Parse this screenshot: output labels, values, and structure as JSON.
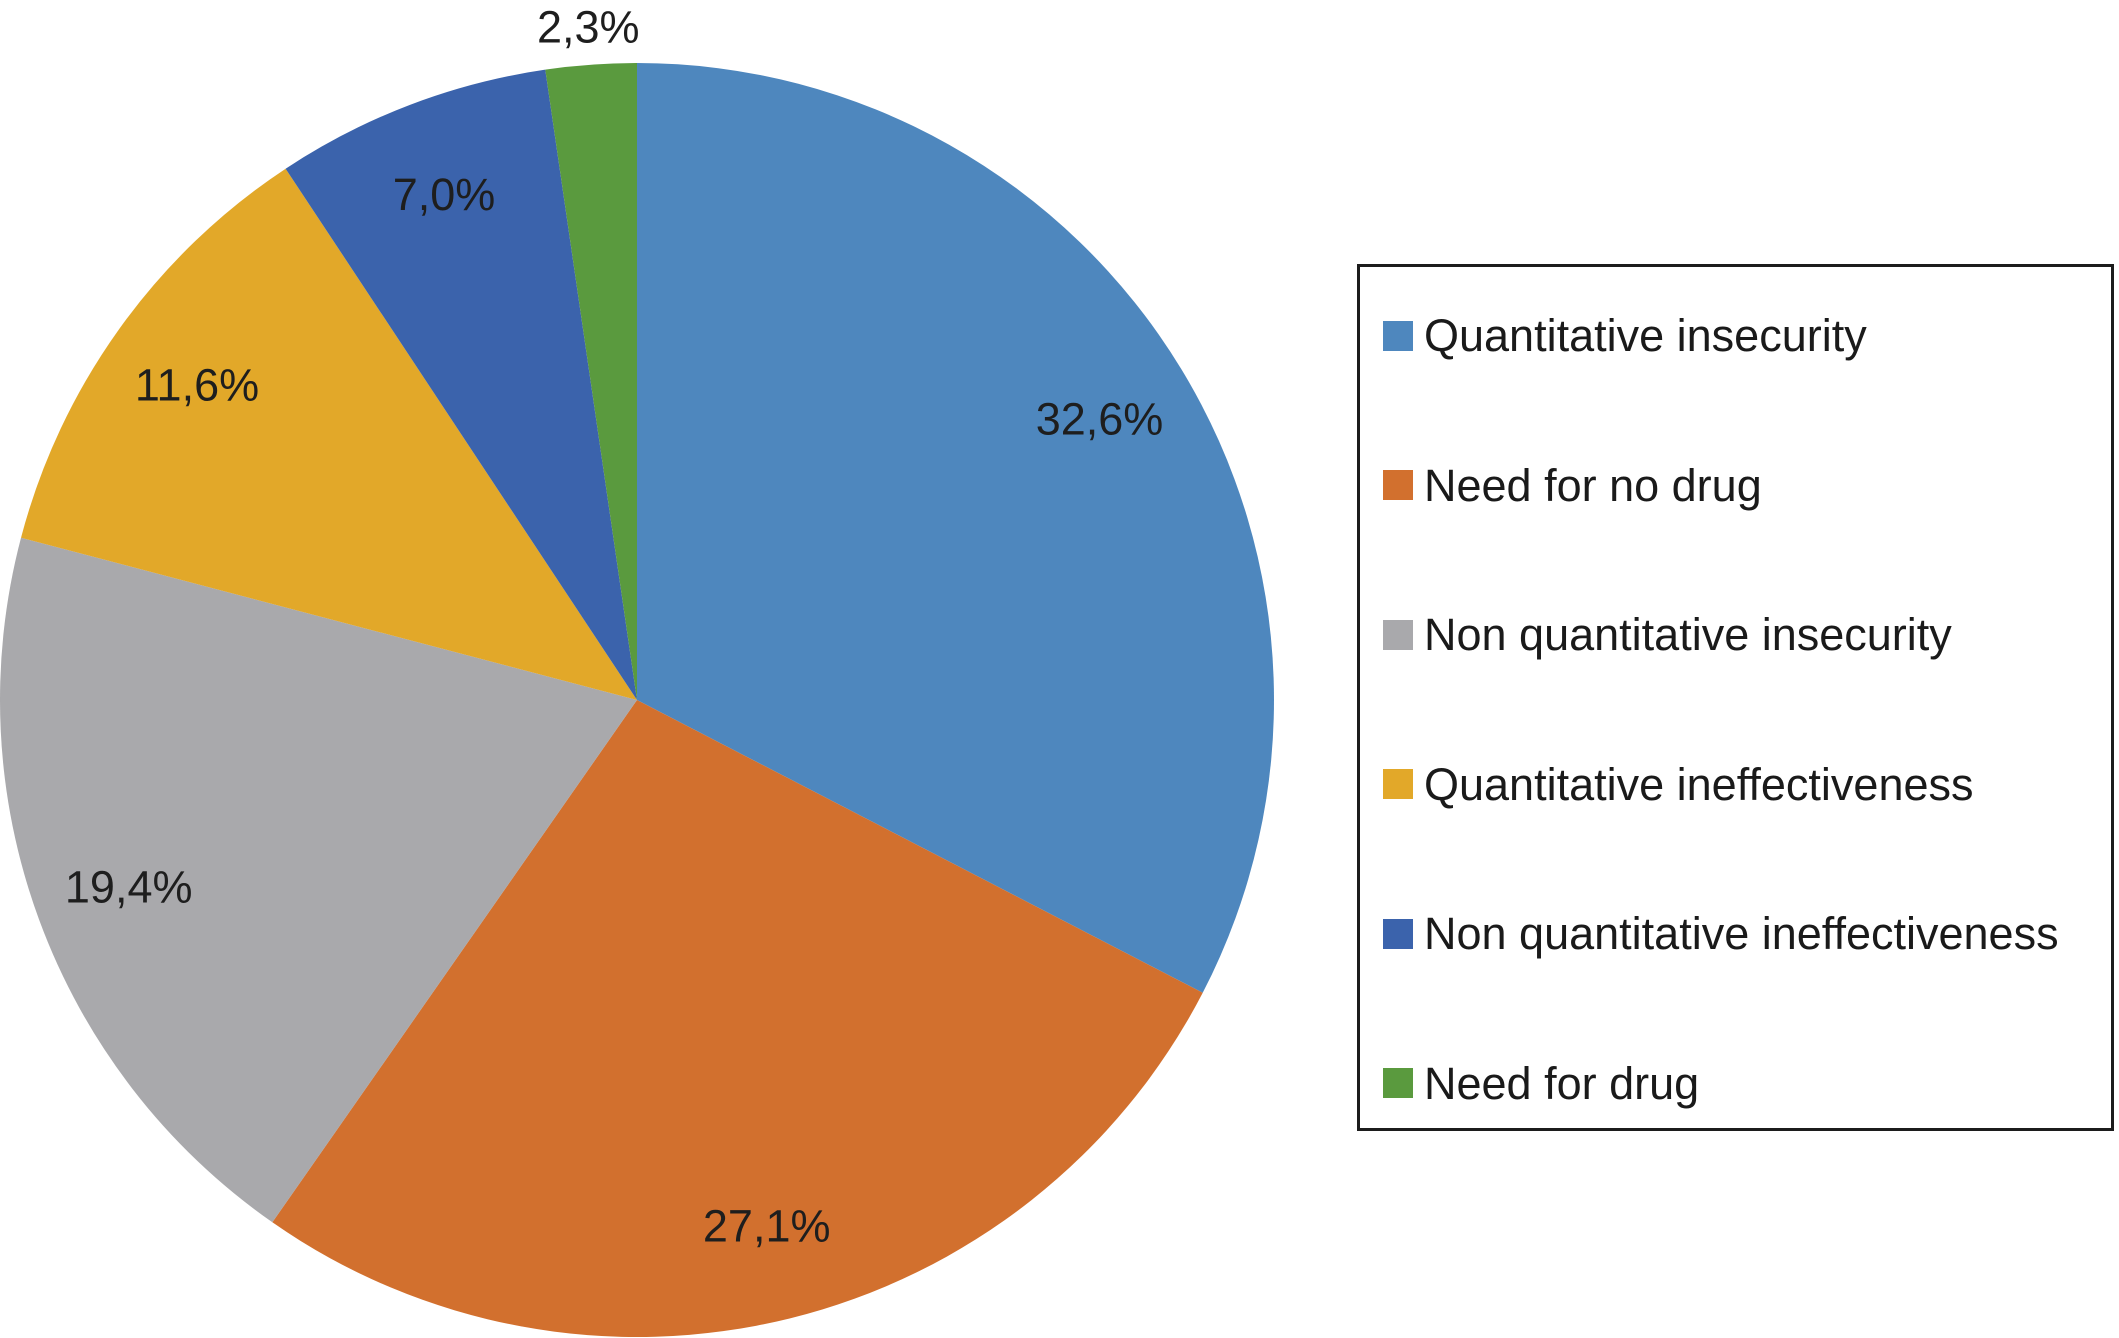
{
  "figure": {
    "background": "#FFFFFF",
    "text_color": "#1E1E1E",
    "legend_border_color": "#1C1C1C"
  },
  "chart_data": {
    "type": "pie",
    "title": "",
    "start_angle_deg": 0,
    "direction": "clockwise",
    "legend_position": "right",
    "value_label_format": "percent with comma decimal separator",
    "slices": [
      {
        "label": "Quantitative insecurity",
        "value": 32.6,
        "display": "32,6%",
        "color": "#4E87BE",
        "label_position": "inside"
      },
      {
        "label": "Need for no drug",
        "value": 27.1,
        "display": "27,1%",
        "color": "#D2702E",
        "label_position": "inside"
      },
      {
        "label": "Non quantitative insecurity",
        "value": 19.4,
        "display": "19,4%",
        "color": "#A9A9AC",
        "label_position": "inside"
      },
      {
        "label": "Quantitative ineffectiveness",
        "value": 11.6,
        "display": "11,6%",
        "color": "#E2A829",
        "label_position": "inside"
      },
      {
        "label": "Non quantitative ineffectiveness",
        "value": 7.0,
        "display": "7,0%",
        "color": "#3B63AC",
        "label_position": "inside"
      },
      {
        "label": "Need for drug",
        "value": 2.3,
        "display": "2,3%",
        "color": "#5A9A3E",
        "label_position": "outside"
      }
    ]
  }
}
